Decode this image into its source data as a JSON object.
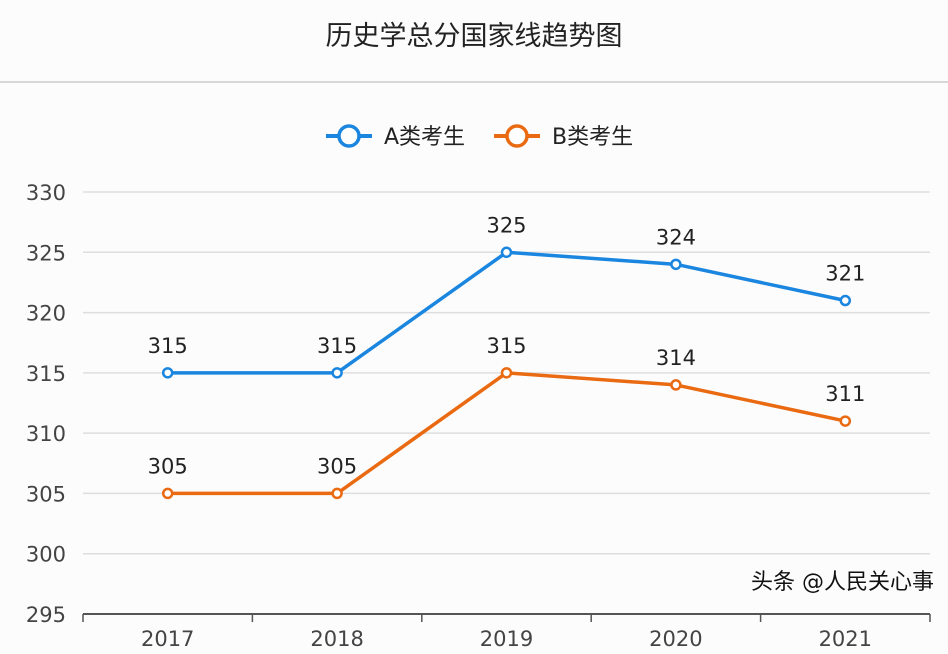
{
  "chart_data": {
    "type": "line",
    "title": "历史学总分国家线趋势图",
    "categories": [
      "2017",
      "2018",
      "2019",
      "2020",
      "2021"
    ],
    "series": [
      {
        "name": "A类考生",
        "color": "#1a86e0",
        "values": [
          315,
          315,
          325,
          324,
          321
        ]
      },
      {
        "name": "B类考生",
        "color": "#ea6a12",
        "values": [
          305,
          305,
          315,
          314,
          311
        ]
      }
    ],
    "ylim": [
      295,
      330
    ],
    "yticks": [
      295,
      300,
      305,
      310,
      315,
      320,
      325,
      330
    ],
    "grid": true,
    "legend": "top-center",
    "data_labels": true
  },
  "watermark": "头条 @人民关心事"
}
